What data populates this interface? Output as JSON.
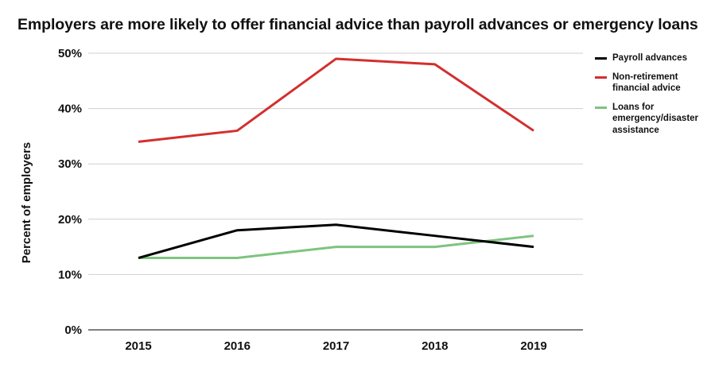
{
  "chart_data": {
    "type": "line",
    "title": "Employers are more likely to offer financial advice than payroll advances or emergency loans",
    "xlabel": "",
    "ylabel": "Percent of employers",
    "categories": [
      "2015",
      "2016",
      "2017",
      "2018",
      "2019"
    ],
    "ylim": [
      0,
      50
    ],
    "yticks": [
      0,
      10,
      20,
      30,
      40,
      50
    ],
    "ytick_labels": [
      "0%",
      "10%",
      "20%",
      "30%",
      "40%",
      "50%"
    ],
    "grid": true,
    "legend_position": "right",
    "series": [
      {
        "name": "Payroll advances",
        "color": "#000000",
        "values": [
          13,
          18,
          19,
          17,
          15
        ]
      },
      {
        "name": "Non-retirement financial advice",
        "color": "#d32f2f",
        "values": [
          34,
          36,
          49,
          48,
          36
        ]
      },
      {
        "name": "Loans for emergency/disaster assistance",
        "color": "#7dc47f",
        "values": [
          13,
          13,
          15,
          15,
          17
        ]
      }
    ]
  }
}
